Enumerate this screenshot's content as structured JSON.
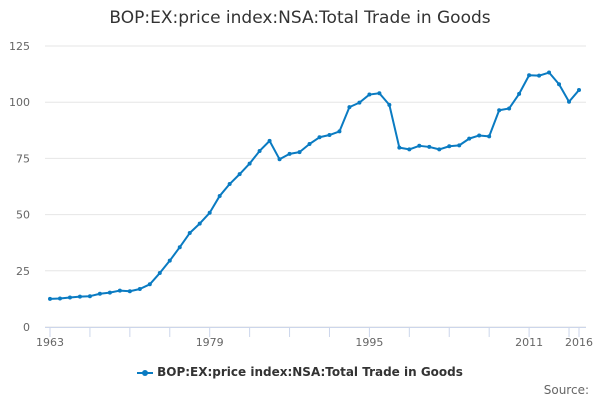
{
  "chart_data": {
    "type": "line",
    "title": "BOP:EX:price index:NSA:Total Trade in Goods",
    "xlabel": "",
    "ylabel": "",
    "xlim": [
      1963,
      2016
    ],
    "ylim": [
      0,
      125
    ],
    "yticks": [
      0,
      25,
      50,
      75,
      100,
      125
    ],
    "xtick_labels": [
      1963,
      1979,
      1995,
      2011,
      2016
    ],
    "grid": true,
    "legend": "bottom",
    "color": "#0a7bc2",
    "series": [
      {
        "name": "BOP:EX:price index:NSA:Total Trade in Goods",
        "x": [
          1963,
          1964,
          1965,
          1966,
          1967,
          1968,
          1969,
          1970,
          1971,
          1972,
          1973,
          1974,
          1975,
          1976,
          1977,
          1978,
          1979,
          1980,
          1981,
          1982,
          1983,
          1984,
          1985,
          1986,
          1987,
          1988,
          1989,
          1990,
          1991,
          1992,
          1993,
          1994,
          1995,
          1996,
          1997,
          1998,
          1999,
          2000,
          2001,
          2002,
          2003,
          2004,
          2005,
          2006,
          2007,
          2008,
          2009,
          2010,
          2011,
          2012,
          2013,
          2014,
          2015,
          2016
        ],
        "values": [
          12.5,
          12.7,
          13.1,
          13.5,
          13.7,
          14.8,
          15.3,
          16.2,
          15.9,
          16.9,
          19.0,
          24.0,
          29.5,
          35.5,
          41.8,
          46.0,
          50.8,
          58.3,
          63.6,
          68.0,
          72.7,
          78.3,
          82.8,
          74.6,
          77.0,
          77.8,
          81.4,
          84.4,
          85.4,
          87.0,
          97.8,
          99.8,
          103.4,
          104.0,
          98.8,
          79.8,
          79.0,
          80.6,
          80.1,
          79.0,
          80.4,
          80.8,
          83.8,
          85.2,
          84.8,
          96.4,
          97.2,
          103.7,
          112.0,
          111.8,
          113.2,
          108.0,
          100.2,
          105.4
        ]
      }
    ]
  },
  "source_label": "Source:"
}
